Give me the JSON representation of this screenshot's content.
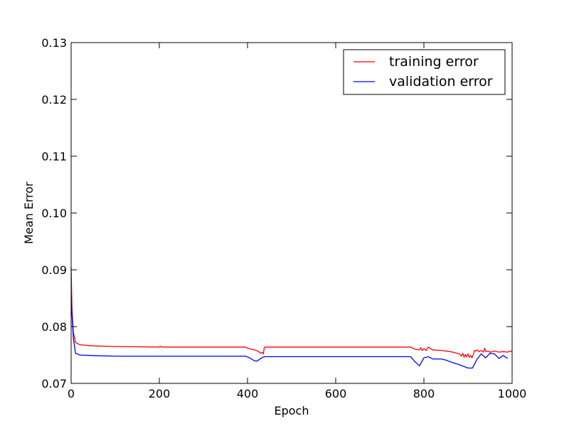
{
  "chart_data": {
    "type": "line",
    "title": "",
    "xlabel": "Epoch",
    "ylabel": "Mean Error",
    "xlim": [
      0,
      1000
    ],
    "ylim": [
      0.07,
      0.13
    ],
    "x_ticks": [
      0,
      200,
      400,
      600,
      800,
      1000
    ],
    "x_tick_labels": [
      "0",
      "200",
      "400",
      "600",
      "800",
      "1000"
    ],
    "y_ticks": [
      0.07,
      0.08,
      0.09,
      0.1,
      0.11,
      0.12,
      0.13
    ],
    "y_tick_labels": [
      "0.07",
      "0.08",
      "0.09",
      "0.10",
      "0.11",
      "0.12",
      "0.13"
    ],
    "grid": false,
    "legend_position": "top-right",
    "series": [
      {
        "name": "training error",
        "color": "#ff0000",
        "x": [
          0,
          2,
          5,
          10,
          20,
          50,
          100,
          200,
          202,
          205,
          300,
          395,
          400,
          410,
          420,
          425,
          430,
          433,
          436,
          438,
          440,
          500,
          600,
          700,
          770,
          780,
          790,
          793,
          796,
          800,
          805,
          810,
          820,
          840,
          860,
          870,
          880,
          885,
          888,
          891,
          894,
          897,
          900,
          903,
          906,
          909,
          912,
          915,
          918,
          921,
          925,
          930,
          935,
          938,
          940,
          945,
          950,
          960,
          970,
          980,
          990,
          995,
          1000
        ],
        "y": [
          0.0905,
          0.083,
          0.079,
          0.0772,
          0.0768,
          0.0766,
          0.0765,
          0.0764,
          0.07655,
          0.0764,
          0.0764,
          0.0764,
          0.0762,
          0.076,
          0.0758,
          0.0756,
          0.0753,
          0.0755,
          0.0752,
          0.0763,
          0.0764,
          0.0764,
          0.0764,
          0.0764,
          0.0764,
          0.076,
          0.0759,
          0.0763,
          0.0758,
          0.0761,
          0.0758,
          0.0764,
          0.0759,
          0.0758,
          0.0756,
          0.0754,
          0.0752,
          0.0748,
          0.0753,
          0.0746,
          0.0751,
          0.0747,
          0.0752,
          0.0746,
          0.0749,
          0.0745,
          0.0751,
          0.0758,
          0.0757,
          0.0759,
          0.0756,
          0.0758,
          0.0755,
          0.0762,
          0.0756,
          0.0757,
          0.0755,
          0.0757,
          0.0755,
          0.0756,
          0.0755,
          0.0757,
          0.0756
        ]
      },
      {
        "name": "validation error",
        "color": "#0000ff",
        "x": [
          0,
          2,
          5,
          10,
          20,
          50,
          100,
          200,
          300,
          395,
          405,
          415,
          420,
          425,
          430,
          435,
          440,
          500,
          600,
          700,
          770,
          780,
          790,
          800,
          810,
          820,
          840,
          850,
          860,
          880,
          900,
          910,
          920,
          930,
          940,
          950,
          960,
          970,
          980,
          990
        ],
        "y": [
          0.0855,
          0.082,
          0.078,
          0.0753,
          0.075,
          0.0749,
          0.0748,
          0.0748,
          0.0748,
          0.0748,
          0.0745,
          0.074,
          0.0739,
          0.0741,
          0.0744,
          0.0746,
          0.0747,
          0.0747,
          0.0747,
          0.0747,
          0.0747,
          0.0738,
          0.0731,
          0.0745,
          0.0747,
          0.0743,
          0.0743,
          0.0741,
          0.0738,
          0.0733,
          0.0727,
          0.0727,
          0.0742,
          0.0752,
          0.0745,
          0.0753,
          0.0752,
          0.0744,
          0.0749,
          0.0744
        ]
      }
    ]
  }
}
